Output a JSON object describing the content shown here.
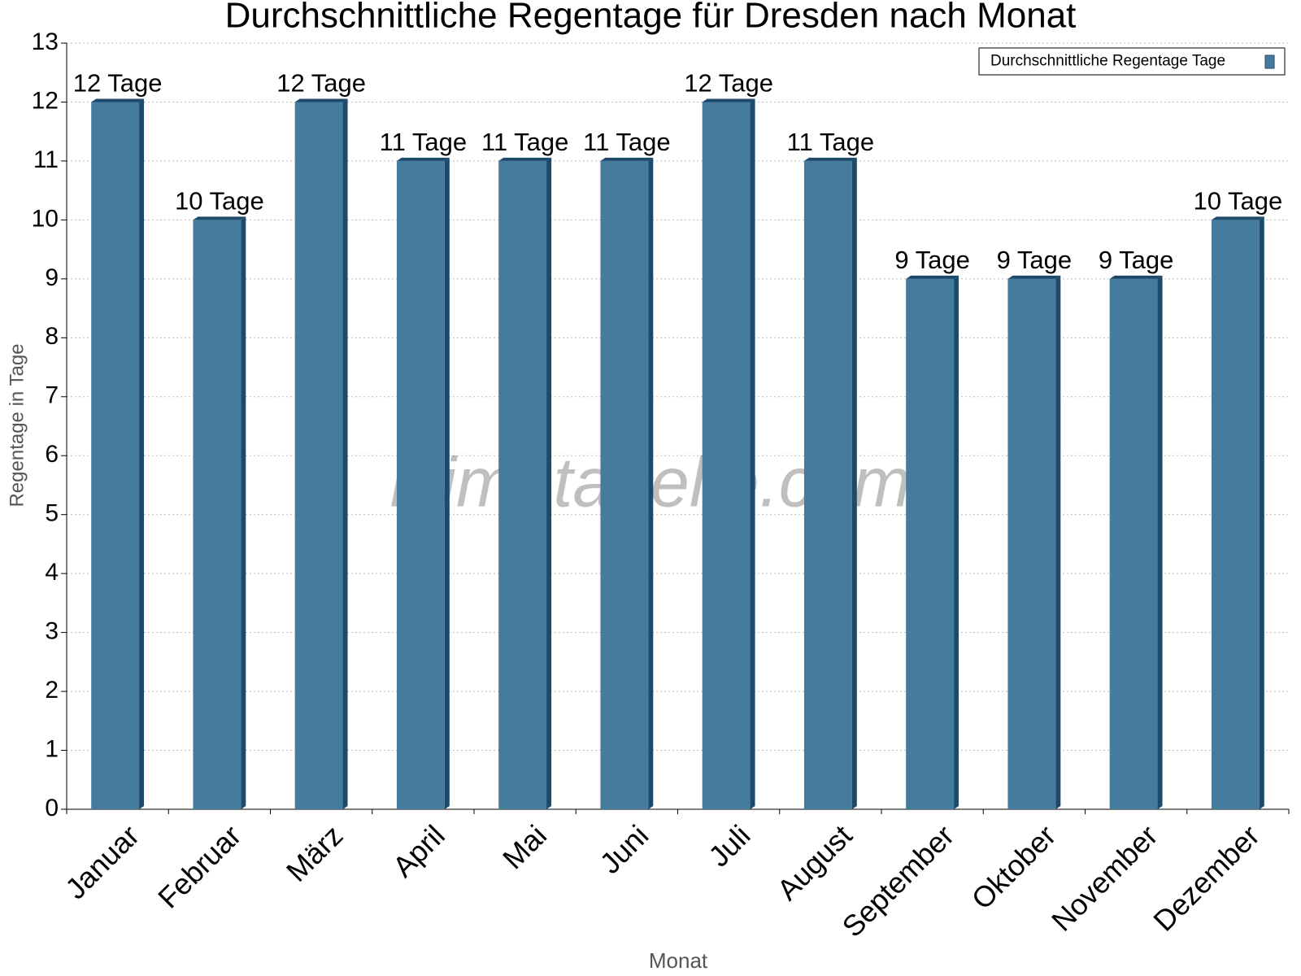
{
  "chart_data": {
    "type": "bar",
    "title": "Durchschnittliche Regentage für Dresden nach Monat",
    "x_label": "Monat",
    "y_label": "Regentage in Tage",
    "watermark": "klimatabelle.com",
    "categories": [
      "Januar",
      "Februar",
      "März",
      "April",
      "Mai",
      "Juni",
      "Juli",
      "August",
      "September",
      "Oktober",
      "November",
      "Dezember"
    ],
    "series": [
      {
        "name": "Durchschnittliche Regentage Tage",
        "color": "#457b9d",
        "values": [
          12,
          10,
          12,
          11,
          11,
          11,
          12,
          11,
          9,
          9,
          9,
          10
        ],
        "value_labels": [
          "12 Tage",
          "10 Tage",
          "12 Tage",
          "11 Tage",
          "11 Tage",
          "11 Tage",
          "12 Tage",
          "11 Tage",
          "9 Tage",
          "9 Tage",
          "9 Tage",
          "10 Tage"
        ]
      }
    ],
    "ylim": [
      0,
      13
    ],
    "yticks": [
      0,
      1,
      2,
      3,
      4,
      5,
      6,
      7,
      8,
      9,
      10,
      11,
      12,
      13
    ],
    "grid": true,
    "legend": "top-right"
  }
}
